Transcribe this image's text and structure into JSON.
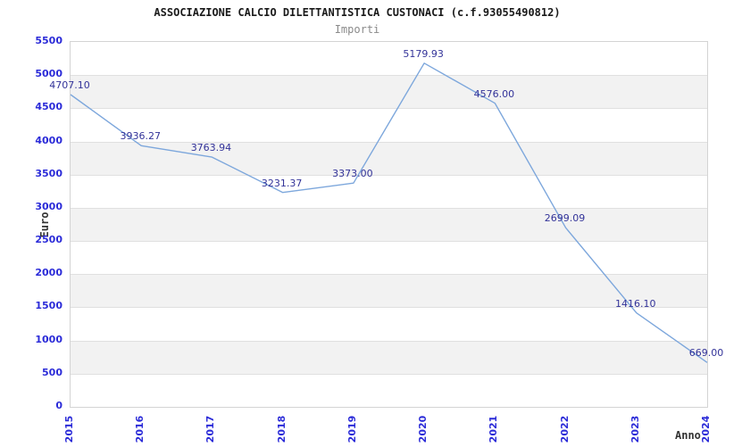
{
  "chart_data": {
    "type": "line",
    "title": "ASSOCIAZIONE CALCIO DILETTANTISTICA CUSTONACI (c.f.93055490812)",
    "subtitle": "Importi",
    "xlabel": "Anno",
    "ylabel": "Euro",
    "categories": [
      "2015",
      "2016",
      "2017",
      "2018",
      "2019",
      "2020",
      "2021",
      "2022",
      "2023",
      "2024"
    ],
    "values": [
      4707.1,
      3936.27,
      3763.94,
      3231.37,
      3373.0,
      5179.93,
      4576.0,
      2699.09,
      1416.1,
      669.0
    ],
    "point_labels": [
      "4707.10",
      "3936.27",
      "3763.94",
      "3231.37",
      "3373.00",
      "5179.93",
      "4576.00",
      "2699.09",
      "1416.10",
      "669.00"
    ],
    "ylim": [
      0,
      5500
    ],
    "ytick_step": 500,
    "yticks": [
      0,
      500,
      1000,
      1500,
      2000,
      2500,
      3000,
      3500,
      4000,
      4500,
      5000,
      5500
    ],
    "grid": "horizontal-bands-alternating",
    "legend": "none"
  },
  "colors": {
    "line": "#7da7dc",
    "tick_label": "#2b2bd8",
    "data_label": "#333399",
    "band": "#f2f2f2",
    "gridline": "#e0e0e0",
    "plot_border": "#d4d4d4",
    "title": "#1a1a1a",
    "subtitle": "#8a8a8a",
    "axis_title": "#333333",
    "background": "#ffffff"
  }
}
